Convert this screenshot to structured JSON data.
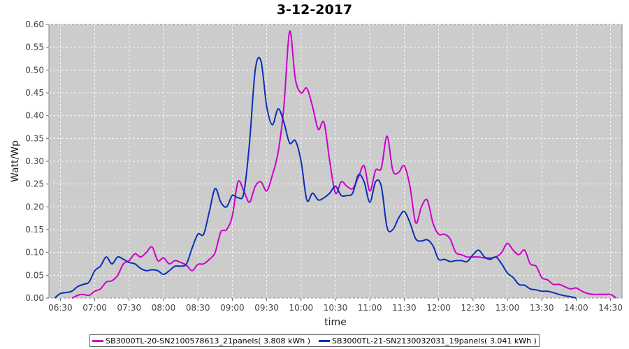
{
  "chart_data": {
    "type": "line",
    "title": "3-12-2017",
    "xlabel": "time",
    "ylabel": "Watt/Wp",
    "ylim": [
      0,
      0.6
    ],
    "yticks": [
      "0.00",
      "0.05",
      "0.10",
      "0.15",
      "0.20",
      "0.25",
      "0.30",
      "0.35",
      "0.40",
      "0.45",
      "0.50",
      "0.55",
      "0.60"
    ],
    "xticks": [
      "06:30",
      "07:00",
      "07:30",
      "08:00",
      "08:30",
      "09:00",
      "09:30",
      "10:00",
      "10:30",
      "11:00",
      "11:30",
      "12:00",
      "12:30",
      "13:00",
      "13:30",
      "14:00",
      "14:30"
    ],
    "x_range": [
      "06:20",
      "14:40"
    ],
    "grid": true,
    "legend_position": "bottom",
    "series": [
      {
        "name": "SB3000TL-20-SN2100578613_21panels( 3.808 kWh )",
        "color": "#cc00cc",
        "x": [
          "06:40",
          "06:48",
          "06:55",
          "07:00",
          "07:05",
          "07:10",
          "07:15",
          "07:20",
          "07:25",
          "07:30",
          "07:35",
          "07:40",
          "07:45",
          "07:50",
          "07:55",
          "08:00",
          "08:05",
          "08:10",
          "08:15",
          "08:20",
          "08:25",
          "08:30",
          "08:35",
          "08:40",
          "08:45",
          "08:50",
          "08:55",
          "09:00",
          "09:05",
          "09:10",
          "09:15",
          "09:20",
          "09:25",
          "09:30",
          "09:35",
          "09:40",
          "09:45",
          "09:50",
          "09:55",
          "10:00",
          "10:05",
          "10:10",
          "10:15",
          "10:20",
          "10:25",
          "10:30",
          "10:35",
          "10:40",
          "10:45",
          "10:50",
          "10:55",
          "11:00",
          "11:05",
          "11:10",
          "11:15",
          "11:20",
          "11:25",
          "11:30",
          "11:35",
          "11:40",
          "11:45",
          "11:50",
          "11:55",
          "12:00",
          "12:05",
          "12:10",
          "12:15",
          "12:20",
          "12:25",
          "12:30",
          "12:35",
          "12:40",
          "12:45",
          "12:50",
          "12:55",
          "13:00",
          "13:05",
          "13:10",
          "13:15",
          "13:20",
          "13:25",
          "13:30",
          "13:35",
          "13:40",
          "13:45",
          "13:50",
          "13:55",
          "14:00",
          "14:05",
          "14:10",
          "14:15",
          "14:20",
          "14:25",
          "14:30",
          "14:35"
        ],
        "values": [
          0.0,
          0.008,
          0.006,
          0.015,
          0.02,
          0.035,
          0.038,
          0.05,
          0.075,
          0.082,
          0.097,
          0.09,
          0.1,
          0.112,
          0.082,
          0.088,
          0.075,
          0.082,
          0.078,
          0.072,
          0.06,
          0.074,
          0.075,
          0.085,
          0.1,
          0.145,
          0.15,
          0.18,
          0.255,
          0.235,
          0.21,
          0.245,
          0.255,
          0.235,
          0.27,
          0.32,
          0.42,
          0.585,
          0.48,
          0.45,
          0.46,
          0.42,
          0.37,
          0.385,
          0.3,
          0.23,
          0.255,
          0.245,
          0.24,
          0.265,
          0.29,
          0.235,
          0.28,
          0.285,
          0.355,
          0.28,
          0.275,
          0.29,
          0.245,
          0.165,
          0.2,
          0.215,
          0.165,
          0.14,
          0.14,
          0.13,
          0.1,
          0.095,
          0.09,
          0.09,
          0.09,
          0.088,
          0.088,
          0.09,
          0.1,
          0.12,
          0.105,
          0.095,
          0.105,
          0.075,
          0.07,
          0.045,
          0.04,
          0.03,
          0.03,
          0.025,
          0.02,
          0.022,
          0.015,
          0.01,
          0.008,
          0.008,
          0.008,
          0.008,
          0.0
        ]
      },
      {
        "name": "SB3000TL-21-SN2130032031_19panels( 3.041 kWh )",
        "color": "#0a2fb8",
        "x": [
          "06:25",
          "06:30",
          "06:35",
          "06:40",
          "06:45",
          "06:50",
          "06:55",
          "07:00",
          "07:05",
          "07:10",
          "07:15",
          "07:20",
          "07:25",
          "07:30",
          "07:35",
          "07:40",
          "07:45",
          "07:50",
          "07:55",
          "08:00",
          "08:05",
          "08:10",
          "08:15",
          "08:20",
          "08:25",
          "08:30",
          "08:35",
          "08:40",
          "08:45",
          "08:50",
          "08:55",
          "09:00",
          "09:05",
          "09:10",
          "09:15",
          "09:20",
          "09:25",
          "09:30",
          "09:35",
          "09:40",
          "09:45",
          "09:50",
          "09:55",
          "10:00",
          "10:05",
          "10:10",
          "10:15",
          "10:20",
          "10:25",
          "10:30",
          "10:35",
          "10:40",
          "10:45",
          "10:50",
          "10:55",
          "11:00",
          "11:05",
          "11:10",
          "11:15",
          "11:20",
          "11:25",
          "11:30",
          "11:35",
          "11:40",
          "11:45",
          "11:50",
          "11:55",
          "12:00",
          "12:05",
          "12:10",
          "12:15",
          "12:20",
          "12:25",
          "12:30",
          "12:35",
          "12:40",
          "12:45",
          "12:50",
          "12:55",
          "13:00",
          "13:05",
          "13:10",
          "13:15",
          "13:20",
          "13:25",
          "13:30",
          "13:35",
          "13:40",
          "13:45",
          "13:50",
          "13:55",
          "14:00"
        ],
        "values": [
          0.0,
          0.01,
          0.012,
          0.015,
          0.025,
          0.03,
          0.035,
          0.06,
          0.07,
          0.09,
          0.075,
          0.09,
          0.085,
          0.078,
          0.075,
          0.065,
          0.06,
          0.062,
          0.06,
          0.052,
          0.06,
          0.07,
          0.07,
          0.075,
          0.11,
          0.14,
          0.14,
          0.19,
          0.24,
          0.21,
          0.2,
          0.225,
          0.22,
          0.23,
          0.34,
          0.5,
          0.52,
          0.42,
          0.38,
          0.415,
          0.385,
          0.34,
          0.345,
          0.3,
          0.215,
          0.23,
          0.215,
          0.22,
          0.23,
          0.245,
          0.225,
          0.225,
          0.23,
          0.27,
          0.255,
          0.21,
          0.255,
          0.245,
          0.155,
          0.15,
          0.175,
          0.19,
          0.165,
          0.13,
          0.125,
          0.128,
          0.115,
          0.085,
          0.085,
          0.08,
          0.082,
          0.082,
          0.08,
          0.095,
          0.105,
          0.09,
          0.085,
          0.09,
          0.075,
          0.055,
          0.045,
          0.03,
          0.028,
          0.02,
          0.018,
          0.015,
          0.015,
          0.012,
          0.008,
          0.005,
          0.003,
          0.0
        ]
      }
    ]
  }
}
